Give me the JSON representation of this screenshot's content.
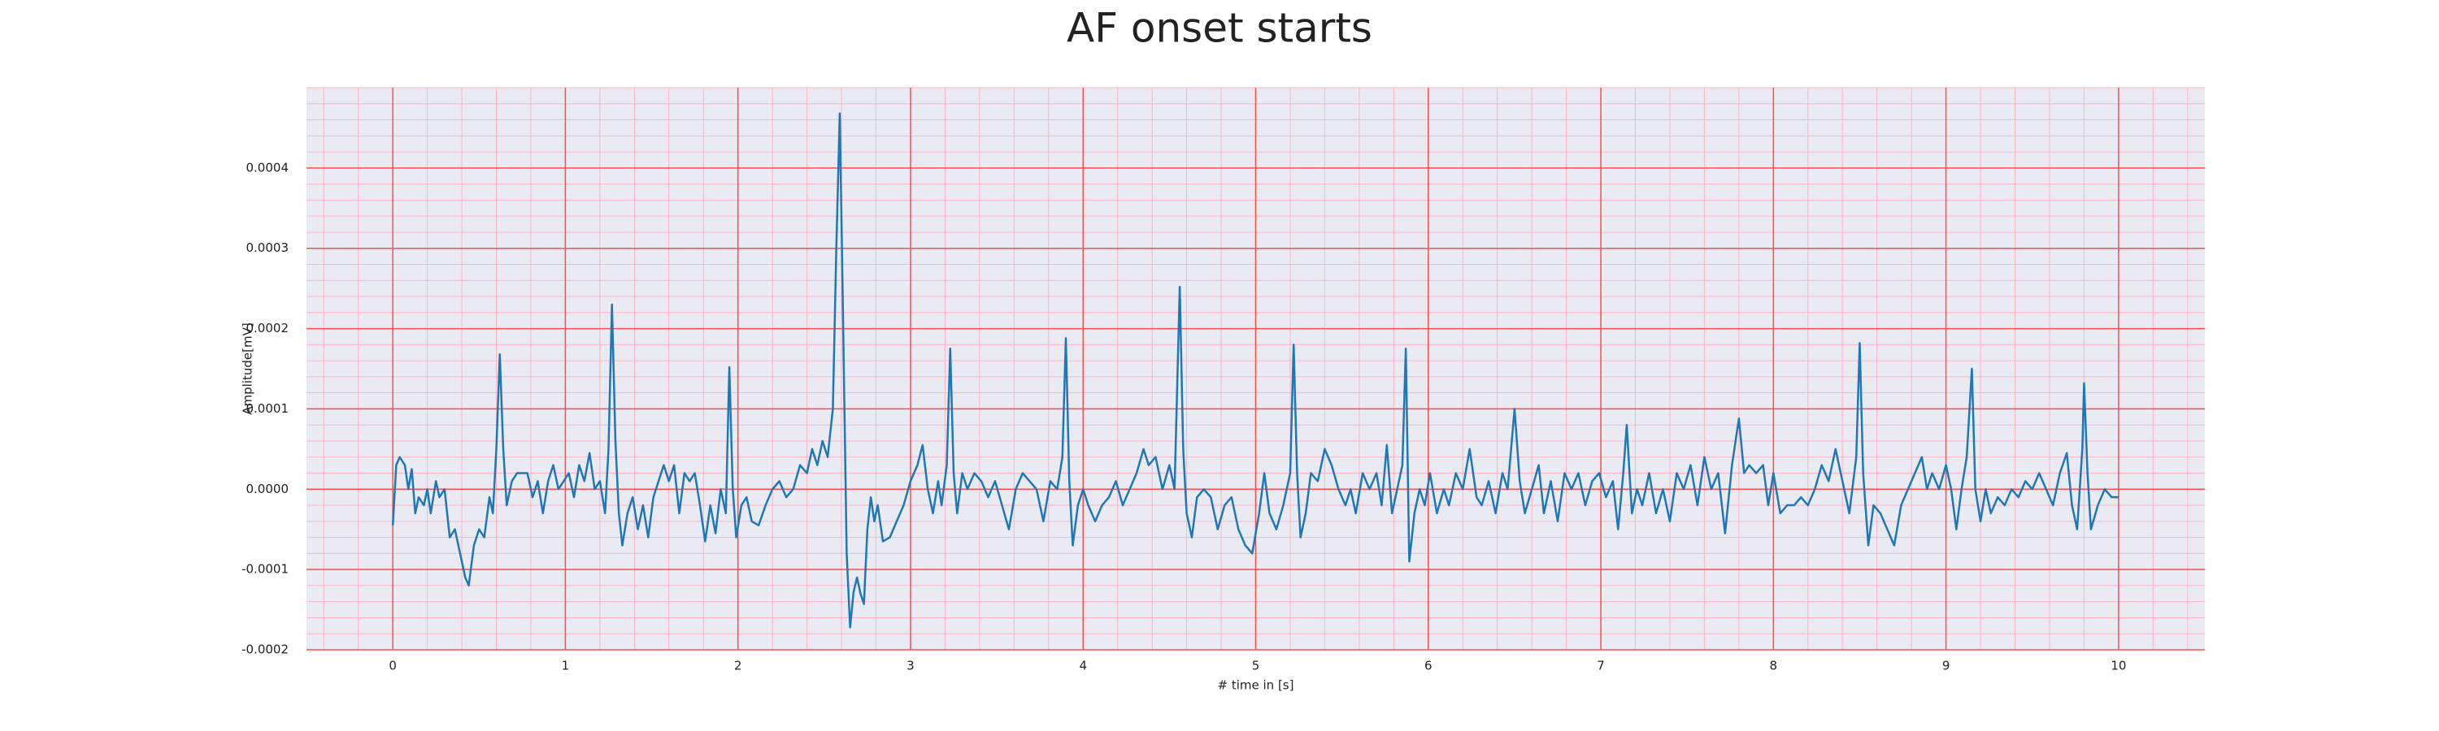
{
  "chart_data": {
    "type": "line",
    "title": "AF onset starts",
    "xlabel": "# time in [s]",
    "ylabel": "Amplitude[mV]",
    "color": "#1f77b4",
    "background": "#eaeaf2",
    "grid": true,
    "grid_color": "#ff4d4d",
    "minor_grid": true,
    "minor_grid_color": "#ffb3c6",
    "xlim": [
      -0.5,
      10.5
    ],
    "xticks": [
      0,
      1,
      2,
      3,
      4,
      5,
      6,
      7,
      8,
      9,
      10
    ],
    "ylim": [
      -0.0002,
      0.0005
    ],
    "yticks": [
      -0.0002,
      -0.0001,
      {
        "value": 0,
        "label": "0.0000"
      },
      0.0001,
      0.0002,
      0.0003,
      0.0004
    ],
    "x": [
      0,
      0.02,
      0.04,
      0.07,
      0.09,
      0.11,
      0.13,
      0.15,
      0.18,
      0.2,
      0.22,
      0.25,
      0.27,
      0.3,
      0.33,
      0.36,
      0.39,
      0.42,
      0.44,
      0.47,
      0.5,
      0.53,
      0.56,
      0.58,
      0.6,
      0.62,
      0.64,
      0.66,
      0.69,
      0.72,
      0.75,
      0.78,
      0.81,
      0.84,
      0.87,
      0.9,
      0.93,
      0.96,
      0.99,
      1.02,
      1.05,
      1.08,
      1.11,
      1.14,
      1.17,
      1.2,
      1.23,
      1.25,
      1.27,
      1.29,
      1.31,
      1.33,
      1.36,
      1.39,
      1.42,
      1.45,
      1.48,
      1.51,
      1.54,
      1.57,
      1.6,
      1.63,
      1.66,
      1.69,
      1.72,
      1.75,
      1.78,
      1.81,
      1.84,
      1.87,
      1.9,
      1.93,
      1.95,
      1.97,
      1.99,
      2.02,
      2.05,
      2.08,
      2.12,
      2.16,
      2.2,
      2.24,
      2.28,
      2.32,
      2.36,
      2.4,
      2.43,
      2.46,
      2.49,
      2.52,
      2.55,
      2.57,
      2.59,
      2.61,
      2.63,
      2.65,
      2.67,
      2.69,
      2.71,
      2.73,
      2.75,
      2.77,
      2.79,
      2.81,
      2.84,
      2.88,
      2.92,
      2.96,
      3.0,
      3.04,
      3.07,
      3.1,
      3.13,
      3.16,
      3.18,
      3.21,
      3.23,
      3.25,
      3.27,
      3.3,
      3.33,
      3.37,
      3.41,
      3.45,
      3.49,
      3.53,
      3.57,
      3.61,
      3.65,
      3.69,
      3.73,
      3.77,
      3.81,
      3.85,
      3.88,
      3.9,
      3.92,
      3.94,
      3.97,
      4.0,
      4.03,
      4.07,
      4.11,
      4.15,
      4.19,
      4.23,
      4.27,
      4.31,
      4.35,
      4.38,
      4.42,
      4.46,
      4.5,
      4.53,
      4.56,
      4.58,
      4.6,
      4.63,
      4.66,
      4.7,
      4.74,
      4.78,
      4.82,
      4.86,
      4.9,
      4.94,
      4.98,
      5.02,
      5.05,
      5.08,
      5.12,
      5.16,
      5.2,
      5.22,
      5.24,
      5.26,
      5.29,
      5.32,
      5.36,
      5.4,
      5.44,
      5.48,
      5.52,
      5.55,
      5.58,
      5.62,
      5.66,
      5.7,
      5.73,
      5.76,
      5.79,
      5.82,
      5.85,
      5.87,
      5.89,
      5.92,
      5.95,
      5.98,
      6.01,
      6.05,
      6.09,
      6.12,
      6.16,
      6.2,
      6.24,
      6.28,
      6.31,
      6.35,
      6.39,
      6.43,
      6.46,
      6.5,
      6.53,
      6.56,
      6.6,
      6.64,
      6.67,
      6.71,
      6.75,
      6.79,
      6.83,
      6.87,
      6.91,
      6.95,
      6.99,
      7.03,
      7.07,
      7.1,
      7.13,
      7.15,
      7.18,
      7.21,
      7.24,
      7.28,
      7.32,
      7.36,
      7.4,
      7.44,
      7.48,
      7.52,
      7.56,
      7.6,
      7.64,
      7.68,
      7.72,
      7.76,
      7.8,
      7.83,
      7.86,
      7.9,
      7.94,
      7.97,
      8.0,
      8.04,
      8.08,
      8.12,
      8.16,
      8.2,
      8.24,
      8.28,
      8.32,
      8.36,
      8.4,
      8.44,
      8.48,
      8.5,
      8.52,
      8.55,
      8.58,
      8.62,
      8.66,
      8.7,
      8.74,
      8.78,
      8.82,
      8.86,
      8.89,
      8.92,
      8.96,
      9.0,
      9.03,
      9.06,
      9.09,
      9.12,
      9.15,
      9.17,
      9.2,
      9.23,
      9.26,
      9.3,
      9.34,
      9.38,
      9.42,
      9.46,
      9.5,
      9.54,
      9.58,
      9.62,
      9.66,
      9.7,
      9.73,
      9.76,
      9.79,
      9.8,
      9.82,
      9.84,
      9.88,
      9.92,
      9.96,
      10.0
    ],
    "values": [
      -4.5e-05,
      3e-05,
      4e-05,
      3e-05,
      0,
      2.5e-05,
      -3e-05,
      -1e-05,
      -2e-05,
      0,
      -3e-05,
      1e-05,
      -1e-05,
      0,
      -6e-05,
      -5e-05,
      -8e-05,
      -0.00011,
      -0.00012,
      -7e-05,
      -5e-05,
      -6e-05,
      -1e-05,
      -3e-05,
      5e-05,
      0.000168,
      5e-05,
      -2e-05,
      1e-05,
      2e-05,
      2e-05,
      2e-05,
      -1e-05,
      1e-05,
      -3e-05,
      1e-05,
      3e-05,
      0,
      1e-05,
      2e-05,
      -1e-05,
      3e-05,
      1e-05,
      4.5e-05,
      0,
      1e-05,
      -3e-05,
      5e-05,
      0.00023,
      6e-05,
      -3e-05,
      -7e-05,
      -3e-05,
      -1e-05,
      -5e-05,
      -2e-05,
      -6e-05,
      -1e-05,
      1e-05,
      3e-05,
      1e-05,
      3e-05,
      -3e-05,
      2e-05,
      1e-05,
      2e-05,
      -2e-05,
      -6.5e-05,
      -2e-05,
      -5.5e-05,
      0,
      -3e-05,
      0.000152,
      0,
      -6e-05,
      -2e-05,
      -1e-05,
      -4e-05,
      -4.5e-05,
      -2e-05,
      0,
      1e-05,
      -1e-05,
      0,
      3e-05,
      2e-05,
      5e-05,
      3e-05,
      6e-05,
      4e-05,
      0.0001,
      0.0003,
      0.000468,
      0.0002,
      -8e-05,
      -0.000172,
      -0.000128,
      -0.00011,
      -0.00013,
      -0.000143,
      -5e-05,
      -1e-05,
      -4e-05,
      -2e-05,
      -6.5e-05,
      -6e-05,
      -4e-05,
      -2e-05,
      1e-05,
      3e-05,
      5.5e-05,
      0,
      -3e-05,
      1e-05,
      -2e-05,
      3e-05,
      0.000175,
      2e-05,
      -3e-05,
      2e-05,
      0,
      2e-05,
      1e-05,
      -1e-05,
      1e-05,
      -2e-05,
      -5e-05,
      0,
      2e-05,
      1e-05,
      0,
      -4e-05,
      1e-05,
      0,
      4e-05,
      0.000188,
      1e-05,
      -7e-05,
      -2e-05,
      0,
      -2e-05,
      -4e-05,
      -2e-05,
      -1e-05,
      1e-05,
      -2e-05,
      0,
      2e-05,
      5e-05,
      3e-05,
      4e-05,
      0,
      3e-05,
      0,
      0.000252,
      5e-05,
      -3e-05,
      -6e-05,
      -1e-05,
      0,
      -1e-05,
      -5e-05,
      -2e-05,
      -1e-05,
      -5e-05,
      -7e-05,
      -8e-05,
      -3e-05,
      2e-05,
      -3e-05,
      -5e-05,
      -2e-05,
      2e-05,
      0.00018,
      2e-05,
      -6e-05,
      -3e-05,
      2e-05,
      1e-05,
      5e-05,
      3e-05,
      0,
      -2e-05,
      0,
      -3e-05,
      2e-05,
      0,
      2e-05,
      -2e-05,
      5.5e-05,
      -3e-05,
      0,
      3e-05,
      0.000175,
      -9e-05,
      -3e-05,
      0,
      -2e-05,
      2e-05,
      -3e-05,
      0,
      -2e-05,
      2e-05,
      0,
      5e-05,
      -1e-05,
      -2e-05,
      1e-05,
      -3e-05,
      2e-05,
      0,
      0.0001,
      1e-05,
      -3e-05,
      0,
      3e-05,
      -3e-05,
      1e-05,
      -4e-05,
      2e-05,
      0,
      2e-05,
      -2e-05,
      1e-05,
      2e-05,
      -1e-05,
      1e-05,
      -5e-05,
      2e-05,
      8e-05,
      -3e-05,
      0,
      -2e-05,
      2e-05,
      -3e-05,
      0,
      -4e-05,
      2e-05,
      0,
      3e-05,
      -2e-05,
      4e-05,
      0,
      2e-05,
      -5.5e-05,
      3e-05,
      8.8e-05,
      2e-05,
      3e-05,
      2e-05,
      3e-05,
      -2e-05,
      2e-05,
      -3e-05,
      -2e-05,
      -2e-05,
      -1e-05,
      -2e-05,
      0,
      3e-05,
      1e-05,
      5e-05,
      1e-05,
      -3e-05,
      4e-05,
      0.000182,
      2e-05,
      -7e-05,
      -2e-05,
      -3e-05,
      -5e-05,
      -7e-05,
      -2e-05,
      0,
      2e-05,
      4e-05,
      0,
      2e-05,
      0,
      3e-05,
      0,
      -5e-05,
      0,
      4e-05,
      0.00015,
      0,
      -4e-05,
      0,
      -3e-05,
      -1e-05,
      -2e-05,
      0,
      -1e-05,
      1e-05,
      0,
      2e-05,
      0,
      -2e-05,
      2e-05,
      4.5e-05,
      -2e-05,
      -5e-05,
      5e-05,
      0.000132,
      2e-05,
      -5e-05,
      -2e-05,
      0,
      -1e-05,
      -1e-05
    ]
  }
}
